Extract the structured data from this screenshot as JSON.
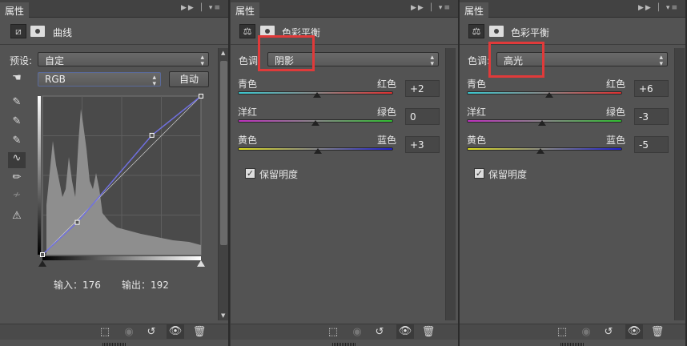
{
  "tab_label": "属性",
  "curves": {
    "title": "曲线",
    "preset_label": "预设:",
    "preset_value": "自定",
    "channel": "RGB",
    "auto_button": "自动",
    "input_label": "输入：176",
    "output_label": "输出：192",
    "curve_points": [
      [
        0,
        0
      ],
      [
        56,
        52
      ],
      [
        176,
        192
      ],
      [
        255,
        255
      ]
    ],
    "tools": [
      "hand-adjust-icon",
      "black-eyedropper-icon",
      "gray-eyedropper-icon",
      "white-eyedropper-icon",
      "curve-tool-icon",
      "pencil-icon",
      "smooth-icon",
      "clipping-warning-icon"
    ]
  },
  "color_balance": [
    {
      "title": "色彩平衡",
      "tone_label": "色调:",
      "tone_value": "阴影",
      "preserve_label": "保留明度",
      "sliders": [
        {
          "left": "青色",
          "right": "红色",
          "value": "+2",
          "num": 2,
          "from": "#3cc8d0",
          "to": "#e03030"
        },
        {
          "left": "洋红",
          "right": "绿色",
          "value": "0",
          "num": 0,
          "from": "#c030c0",
          "to": "#30c030"
        },
        {
          "left": "黄色",
          "right": "蓝色",
          "value": "+3",
          "num": 3,
          "from": "#e0e020",
          "to": "#2020d0"
        }
      ]
    },
    {
      "title": "色彩平衡",
      "tone_label": "色调:",
      "tone_value": "高光",
      "preserve_label": "保留明度",
      "sliders": [
        {
          "left": "青色",
          "right": "红色",
          "value": "+6",
          "num": 6,
          "from": "#3cc8d0",
          "to": "#e03030"
        },
        {
          "left": "洋红",
          "right": "绿色",
          "value": "-3",
          "num": -3,
          "from": "#c030c0",
          "to": "#30c030"
        },
        {
          "left": "黄色",
          "right": "蓝色",
          "value": "-5",
          "num": -5,
          "from": "#e0e020",
          "to": "#2020d0"
        }
      ]
    }
  ],
  "highlight_color": "#e03a3a"
}
